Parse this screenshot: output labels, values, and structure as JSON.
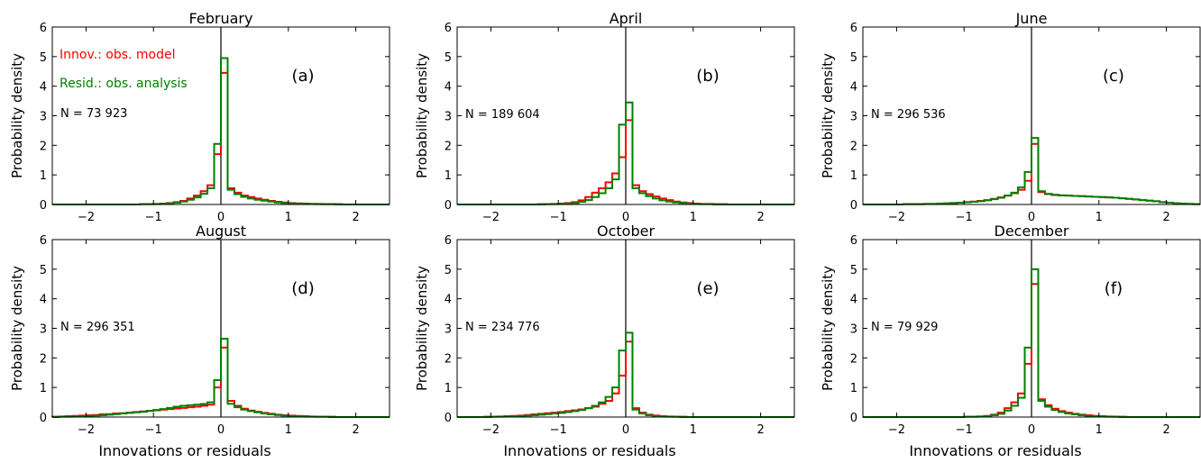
{
  "chart_data": {
    "type": "line",
    "grid": false,
    "xlabel": "Innovations or residuals",
    "ylabel": "Probability density",
    "xlim": [
      -2.5,
      2.5
    ],
    "ylim": [
      0,
      6
    ],
    "xticks": [
      -2,
      -1,
      0,
      1,
      2
    ],
    "yticks": [
      0,
      1,
      2,
      3,
      4,
      5,
      6
    ],
    "legend": [
      {
        "name": "Innov.: obs. model",
        "color": "#ff0000"
      },
      {
        "name": "Resid.: obs. analysis",
        "color": "#008000"
      }
    ],
    "bin_edges": [
      -2.5,
      -2.4,
      -2.3,
      -2.2,
      -2.1,
      -2.0,
      -1.9,
      -1.8,
      -1.7,
      -1.6,
      -1.5,
      -1.4,
      -1.3,
      -1.2,
      -1.1,
      -1.0,
      -0.9,
      -0.8,
      -0.7,
      -0.6,
      -0.5,
      -0.4,
      -0.3,
      -0.2,
      -0.1,
      0.0,
      0.1,
      0.2,
      0.3,
      0.4,
      0.5,
      0.6,
      0.7,
      0.8,
      0.9,
      1.0,
      1.1,
      1.2,
      1.3,
      1.4,
      1.5,
      1.6,
      1.7,
      1.8,
      1.9,
      2.0,
      2.1,
      2.2,
      2.3,
      2.4,
      2.5
    ],
    "panels": [
      {
        "title": "February",
        "label": "(a)",
        "n_label": "N = 73 923",
        "innovations": [
          0,
          0,
          0,
          0,
          0,
          0,
          0,
          0,
          0,
          0,
          0,
          0,
          0,
          0.01,
          0.01,
          0.02,
          0.03,
          0.05,
          0.08,
          0.12,
          0.2,
          0.3,
          0.45,
          0.65,
          1.7,
          4.45,
          0.55,
          0.4,
          0.3,
          0.25,
          0.2,
          0.16,
          0.12,
          0.09,
          0.07,
          0.05,
          0.04,
          0.03,
          0.02,
          0.02,
          0.01,
          0.01,
          0.01,
          0,
          0,
          0,
          0,
          0,
          0,
          0
        ],
        "residuals": [
          0,
          0,
          0,
          0,
          0,
          0,
          0,
          0,
          0,
          0,
          0,
          0,
          0,
          0.01,
          0.01,
          0.01,
          0.02,
          0.04,
          0.06,
          0.1,
          0.16,
          0.24,
          0.36,
          0.55,
          2.05,
          4.95,
          0.5,
          0.35,
          0.26,
          0.2,
          0.16,
          0.13,
          0.1,
          0.07,
          0.05,
          0.04,
          0.03,
          0.02,
          0.02,
          0.01,
          0.01,
          0.01,
          0,
          0,
          0,
          0,
          0,
          0,
          0,
          0
        ]
      },
      {
        "title": "April",
        "label": "(b)",
        "n_label": "N = 189 604",
        "innovations": [
          0,
          0,
          0,
          0,
          0,
          0,
          0,
          0,
          0,
          0,
          0,
          0,
          0.01,
          0.01,
          0.02,
          0.03,
          0.05,
          0.08,
          0.14,
          0.25,
          0.4,
          0.55,
          0.75,
          1.05,
          1.6,
          2.85,
          0.65,
          0.45,
          0.35,
          0.27,
          0.2,
          0.15,
          0.1,
          0.07,
          0.05,
          0.03,
          0.02,
          0.02,
          0.01,
          0.01,
          0,
          0,
          0,
          0,
          0,
          0,
          0,
          0,
          0,
          0
        ],
        "residuals": [
          0,
          0,
          0,
          0,
          0,
          0,
          0,
          0,
          0,
          0,
          0,
          0,
          0,
          0.01,
          0.01,
          0.02,
          0.03,
          0.05,
          0.09,
          0.15,
          0.25,
          0.38,
          0.55,
          0.85,
          2.7,
          3.45,
          0.55,
          0.38,
          0.28,
          0.2,
          0.14,
          0.1,
          0.07,
          0.05,
          0.03,
          0.02,
          0.01,
          0.01,
          0,
          0,
          0,
          0,
          0,
          0,
          0,
          0,
          0,
          0,
          0,
          0
        ]
      },
      {
        "title": "June",
        "label": "(c)",
        "n_label": "N = 296 536",
        "innovations": [
          0,
          0,
          0,
          0,
          0,
          0,
          0.01,
          0.01,
          0.01,
          0.02,
          0.02,
          0.03,
          0.04,
          0.05,
          0.06,
          0.08,
          0.1,
          0.12,
          0.15,
          0.19,
          0.24,
          0.3,
          0.38,
          0.5,
          0.8,
          2.05,
          0.42,
          0.35,
          0.32,
          0.31,
          0.3,
          0.29,
          0.28,
          0.27,
          0.26,
          0.25,
          0.24,
          0.23,
          0.21,
          0.19,
          0.17,
          0.15,
          0.13,
          0.11,
          0.08,
          0.06,
          0.04,
          0.03,
          0.02,
          0.01
        ],
        "residuals": [
          0,
          0,
          0,
          0,
          0,
          0,
          0.01,
          0.01,
          0.01,
          0.02,
          0.02,
          0.03,
          0.04,
          0.05,
          0.06,
          0.08,
          0.09,
          0.11,
          0.14,
          0.18,
          0.23,
          0.3,
          0.4,
          0.58,
          1.1,
          2.25,
          0.45,
          0.36,
          0.33,
          0.31,
          0.3,
          0.29,
          0.28,
          0.27,
          0.26,
          0.25,
          0.24,
          0.23,
          0.21,
          0.19,
          0.17,
          0.15,
          0.13,
          0.11,
          0.08,
          0.06,
          0.04,
          0.03,
          0.02,
          0.01
        ]
      },
      {
        "title": "August",
        "label": "(d)",
        "n_label": "N = 296 351",
        "innovations": [
          0.01,
          0.02,
          0.03,
          0.04,
          0.05,
          0.06,
          0.07,
          0.09,
          0.1,
          0.12,
          0.13,
          0.15,
          0.17,
          0.19,
          0.21,
          0.23,
          0.25,
          0.27,
          0.29,
          0.31,
          0.33,
          0.35,
          0.38,
          0.42,
          1.0,
          2.35,
          0.55,
          0.38,
          0.28,
          0.22,
          0.18,
          0.14,
          0.11,
          0.08,
          0.06,
          0.05,
          0.04,
          0.03,
          0.02,
          0.01,
          0.01,
          0.01,
          0,
          0,
          0,
          0,
          0,
          0,
          0,
          0
        ],
        "residuals": [
          0,
          0.01,
          0.01,
          0.02,
          0.03,
          0.04,
          0.05,
          0.06,
          0.08,
          0.1,
          0.12,
          0.14,
          0.16,
          0.18,
          0.21,
          0.24,
          0.27,
          0.31,
          0.35,
          0.38,
          0.4,
          0.42,
          0.44,
          0.5,
          1.25,
          2.65,
          0.45,
          0.33,
          0.25,
          0.2,
          0.16,
          0.12,
          0.09,
          0.07,
          0.05,
          0.04,
          0.03,
          0.02,
          0.01,
          0.01,
          0.01,
          0,
          0,
          0,
          0,
          0,
          0,
          0,
          0,
          0
        ]
      },
      {
        "title": "October",
        "label": "(e)",
        "n_label": "N = 234 776",
        "innovations": [
          0,
          0,
          0,
          0,
          0.01,
          0.01,
          0.02,
          0.03,
          0.04,
          0.05,
          0.07,
          0.09,
          0.11,
          0.13,
          0.15,
          0.17,
          0.2,
          0.23,
          0.26,
          0.3,
          0.35,
          0.45,
          0.55,
          0.8,
          1.4,
          2.55,
          0.3,
          0.15,
          0.08,
          0.05,
          0.03,
          0.02,
          0.01,
          0.01,
          0,
          0,
          0,
          0,
          0,
          0,
          0,
          0,
          0,
          0,
          0,
          0,
          0,
          0,
          0,
          0
        ],
        "residuals": [
          0,
          0,
          0,
          0,
          0,
          0.01,
          0.01,
          0.02,
          0.03,
          0.04,
          0.05,
          0.06,
          0.08,
          0.1,
          0.12,
          0.14,
          0.17,
          0.2,
          0.24,
          0.3,
          0.38,
          0.5,
          0.68,
          1.0,
          2.25,
          2.85,
          0.25,
          0.12,
          0.06,
          0.03,
          0.02,
          0.01,
          0.01,
          0,
          0,
          0,
          0,
          0,
          0,
          0,
          0,
          0,
          0,
          0,
          0,
          0,
          0,
          0,
          0,
          0
        ]
      },
      {
        "title": "December",
        "label": "(f)",
        "n_label": "N = 79 929",
        "innovations": [
          0,
          0,
          0,
          0,
          0,
          0,
          0,
          0,
          0,
          0,
          0,
          0,
          0,
          0,
          0,
          0.01,
          0.01,
          0.02,
          0.04,
          0.08,
          0.15,
          0.3,
          0.5,
          0.8,
          1.8,
          4.5,
          0.6,
          0.4,
          0.28,
          0.2,
          0.15,
          0.11,
          0.08,
          0.06,
          0.04,
          0.03,
          0.02,
          0.01,
          0.01,
          0,
          0,
          0,
          0,
          0,
          0,
          0,
          0,
          0,
          0,
          0
        ],
        "residuals": [
          0,
          0,
          0,
          0,
          0,
          0,
          0,
          0,
          0,
          0,
          0,
          0,
          0,
          0,
          0,
          0.01,
          0.01,
          0.02,
          0.03,
          0.06,
          0.11,
          0.22,
          0.38,
          0.65,
          2.35,
          5.0,
          0.55,
          0.35,
          0.24,
          0.17,
          0.12,
          0.09,
          0.06,
          0.04,
          0.03,
          0.02,
          0.01,
          0.01,
          0,
          0,
          0,
          0,
          0,
          0,
          0,
          0,
          0,
          0,
          0,
          0
        ]
      }
    ]
  }
}
